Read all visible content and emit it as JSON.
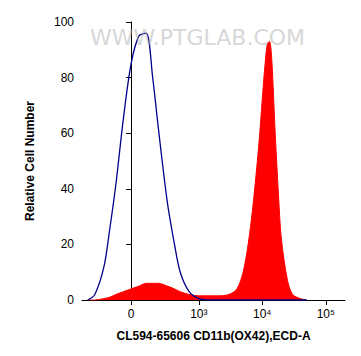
{
  "chart_data": {
    "type": "line",
    "x_label": "CL594-65606 CD11b(OX42),ECD-A",
    "y_label": "Relative Cell Number",
    "annotations": [
      "WWW.PTGLAB.COM"
    ],
    "x": [
      -400,
      -300,
      -200,
      -150,
      -100,
      -50,
      0,
      50,
      100,
      150,
      200,
      300,
      400,
      500,
      700,
      1000,
      1500,
      2000,
      3000,
      4000,
      5000,
      6000,
      7000,
      8000,
      9000,
      10000,
      11000,
      12000,
      13000,
      14000,
      16000,
      18000,
      20000,
      25000,
      30000,
      40000,
      50000
    ],
    "series": [
      {
        "type": "line",
        "color": "#00008b",
        "values": [
          0,
          2,
          12,
          25,
          42,
          65,
          85,
          95,
          96,
          80,
          62,
          35,
          20,
          10,
          3,
          0.5,
          0,
          0,
          0,
          0,
          0,
          0,
          0,
          0,
          0,
          0,
          0,
          0,
          0,
          0,
          0,
          0,
          0,
          0,
          0,
          0,
          0
        ]
      },
      {
        "type": "area",
        "color": "#ff0000",
        "values": [
          0,
          0,
          0.5,
          1,
          2,
          3,
          4,
          5,
          6,
          6,
          6,
          5,
          4,
          3,
          2,
          1.5,
          1.5,
          1.5,
          2,
          4,
          10,
          20,
          32,
          45,
          58,
          72,
          84,
          92,
          93,
          88,
          60,
          38,
          22,
          7,
          2,
          0.5,
          0
        ]
      }
    ],
    "xlim": [
      -500,
      200000
    ],
    "xticks": [
      0,
      {
        "value": 1000,
        "label": "10³"
      },
      {
        "value": 10000,
        "label": "10⁴"
      },
      {
        "value": 100000,
        "label": "10⁵"
      }
    ],
    "ylim": [
      0,
      100
    ],
    "yticks": [
      0,
      20,
      40,
      60,
      80,
      100
    ],
    "grid": false
  }
}
